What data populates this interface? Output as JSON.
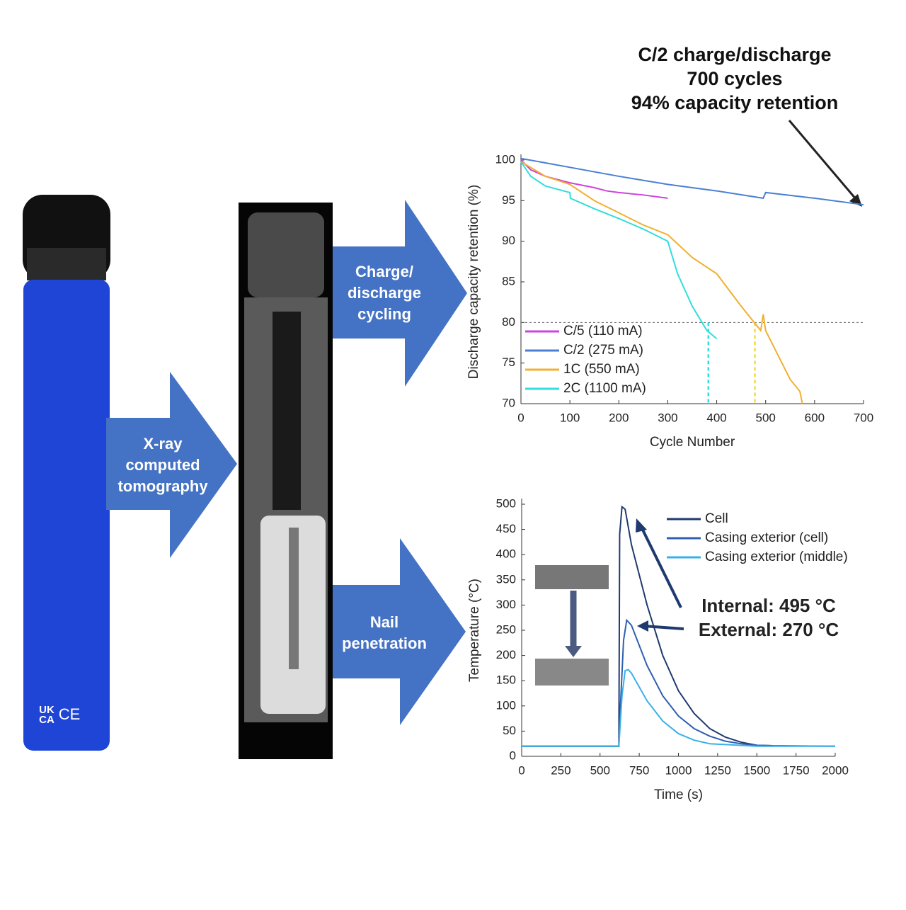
{
  "arrow_labels": [
    [
      "X-ray",
      "computed",
      "tomography"
    ],
    [
      "Charge/",
      "discharge",
      "cycling"
    ],
    [
      "Nail",
      "penetration"
    ]
  ],
  "device_labels": [
    "UK",
    "CA",
    "CE"
  ],
  "annotation": [
    "C/2 charge/discharge",
    "700 cycles",
    "94% capacity retention"
  ],
  "chart_data": [
    {
      "type": "line",
      "x_label": "Cycle Number",
      "y_label": "Discharge capacity retention (%)",
      "xlim": [
        0,
        700
      ],
      "xticks": [
        0,
        100,
        200,
        300,
        400,
        500,
        600,
        700
      ],
      "ylim": [
        70,
        100
      ],
      "yticks": [
        70,
        75,
        80,
        85,
        90,
        95,
        100
      ],
      "hline": 80,
      "vlines": [
        {
          "x": 383,
          "color": "#33dddd"
        },
        {
          "x": 478,
          "color": "#eedd44"
        }
      ],
      "legend": "lower left",
      "series": [
        {
          "name": "C/5 (110 mA)",
          "color": "#cc44dd",
          "x": [
            0,
            20,
            50,
            100,
            150,
            175,
            200,
            250,
            300
          ],
          "values": [
            100,
            98.8,
            98,
            97.2,
            96.6,
            96.2,
            96,
            95.7,
            95.3
          ]
        },
        {
          "name": "C/2 (275 mA)",
          "color": "#4a7fd4",
          "x": [
            0,
            100,
            200,
            300,
            400,
            495,
            500,
            600,
            700
          ],
          "values": [
            100.2,
            99.1,
            98,
            97,
            96.2,
            95.3,
            96,
            95.3,
            94.5
          ]
        },
        {
          "name": "1C (550 mA)",
          "color": "#f0b030",
          "x": [
            0,
            50,
            100,
            150,
            200,
            250,
            300,
            350,
            400,
            450,
            490,
            495,
            500,
            550,
            570,
            575
          ],
          "values": [
            99.8,
            98,
            97,
            95,
            93.5,
            92,
            90.8,
            88,
            86,
            82,
            79,
            81,
            79,
            73,
            71.5,
            70
          ]
        },
        {
          "name": "2C (1100 mA)",
          "color": "#33dddd",
          "x": [
            0,
            20,
            50,
            100,
            101,
            150,
            200,
            250,
            300,
            320,
            350,
            380,
            400
          ],
          "values": [
            99.8,
            98,
            96.8,
            96,
            95.3,
            94,
            92.8,
            91.5,
            90,
            86,
            82,
            79,
            78
          ]
        }
      ]
    },
    {
      "type": "line",
      "x_label": "Time (s)",
      "y_label": "Temperature (°C)",
      "xlim": [
        0,
        2000
      ],
      "xticks": [
        0,
        250,
        500,
        750,
        1000,
        1250,
        1500,
        1750,
        2000
      ],
      "ylim": [
        0,
        500
      ],
      "yticks": [
        0,
        50,
        100,
        150,
        200,
        250,
        300,
        350,
        400,
        450,
        500
      ],
      "legend": "upper right",
      "annotations": [
        "Internal: 495 °C",
        "External: 270 °C"
      ],
      "series": [
        {
          "name": "Cell",
          "color": "#1f3a6e",
          "x": [
            0,
            620,
            625,
            640,
            660,
            700,
            800,
            900,
            1000,
            1100,
            1200,
            1300,
            1400,
            1500,
            1600
          ],
          "values": [
            20,
            20,
            440,
            495,
            490,
            420,
            300,
            200,
            130,
            85,
            55,
            38,
            28,
            22,
            21
          ]
        },
        {
          "name": "Casing exterior (cell)",
          "color": "#2f5fb0",
          "x": [
            0,
            620,
            630,
            650,
            670,
            700,
            800,
            900,
            1000,
            1100,
            1200,
            1300,
            1400,
            1500,
            1600,
            2000
          ],
          "values": [
            20,
            20,
            100,
            230,
            270,
            260,
            180,
            120,
            80,
            55,
            40,
            30,
            25,
            22,
            21,
            20
          ]
        },
        {
          "name": "Casing exterior (middle)",
          "color": "#3ab0e8",
          "x": [
            0,
            620,
            640,
            660,
            680,
            700,
            800,
            900,
            1000,
            1100,
            1200,
            1500,
            2000
          ],
          "values": [
            20,
            20,
            120,
            170,
            172,
            165,
            110,
            70,
            45,
            32,
            25,
            20,
            20
          ]
        }
      ]
    }
  ]
}
